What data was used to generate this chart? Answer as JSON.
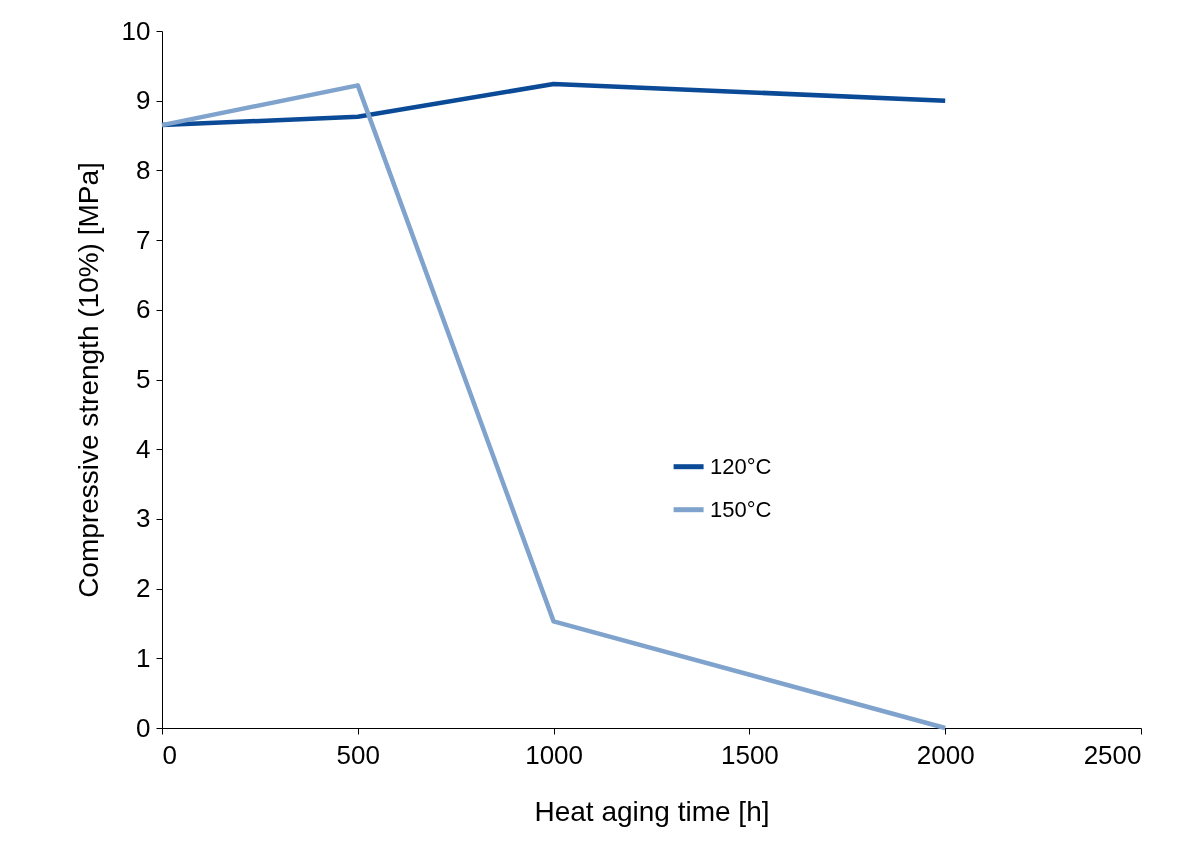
{
  "chart_data": {
    "type": "line",
    "xlabel": "Heat aging time [h]",
    "ylabel": "Compressive strength (10%) [MPa]",
    "x": [
      0,
      500,
      1000,
      2000
    ],
    "xlim": [
      0,
      2500
    ],
    "xticks": [
      0,
      500,
      1000,
      1500,
      2000,
      2500
    ],
    "ylim": [
      0,
      10
    ],
    "yticks": [
      0,
      1,
      2,
      3,
      4,
      5,
      6,
      7,
      8,
      9,
      10
    ],
    "grid": false,
    "legend": "right",
    "series": [
      {
        "name": "120°C",
        "color": "#0a4a96",
        "values": [
          8.65,
          8.77,
          9.24,
          9.0
        ]
      },
      {
        "name": "150°C",
        "color": "#7fa3cc",
        "values": [
          8.65,
          9.22,
          1.53,
          0
        ]
      }
    ]
  }
}
